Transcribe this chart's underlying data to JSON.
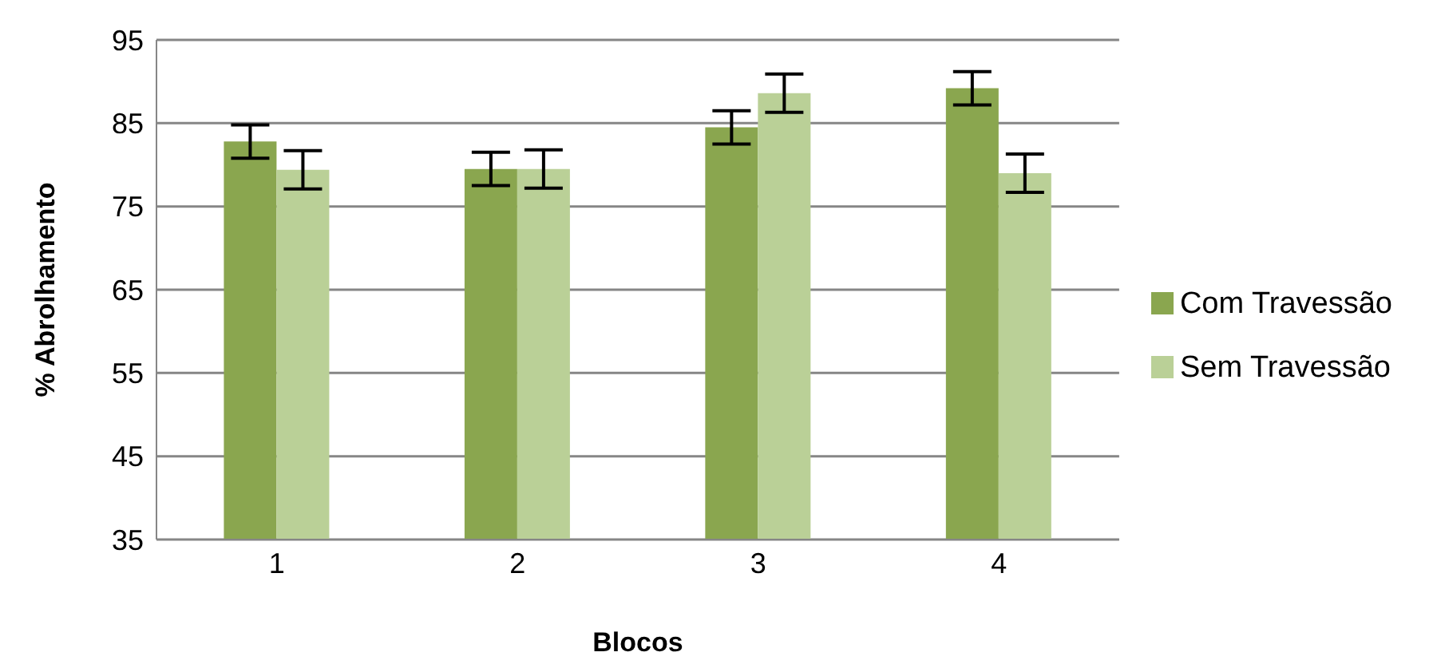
{
  "chart_data": {
    "type": "bar",
    "xlabel": "Blocos",
    "ylabel": "% Abrolhamento",
    "categories": [
      "1",
      "2",
      "3",
      "4"
    ],
    "series": [
      {
        "name": "Com Travessão",
        "color": "#8aa64f",
        "values": [
          82.8,
          79.5,
          84.5,
          89.2
        ],
        "errors": [
          2,
          2,
          2,
          2
        ]
      },
      {
        "name": "Sem Travessão",
        "color": "#bad097",
        "values": [
          79.4,
          79.5,
          88.6,
          79
        ],
        "errors": [
          2.3,
          2.3,
          2.3,
          2.3
        ]
      }
    ],
    "ylim": [
      35,
      95
    ],
    "yticks": [
      35,
      45,
      55,
      65,
      75,
      85,
      95
    ],
    "grid": "y",
    "legend": "right"
  }
}
